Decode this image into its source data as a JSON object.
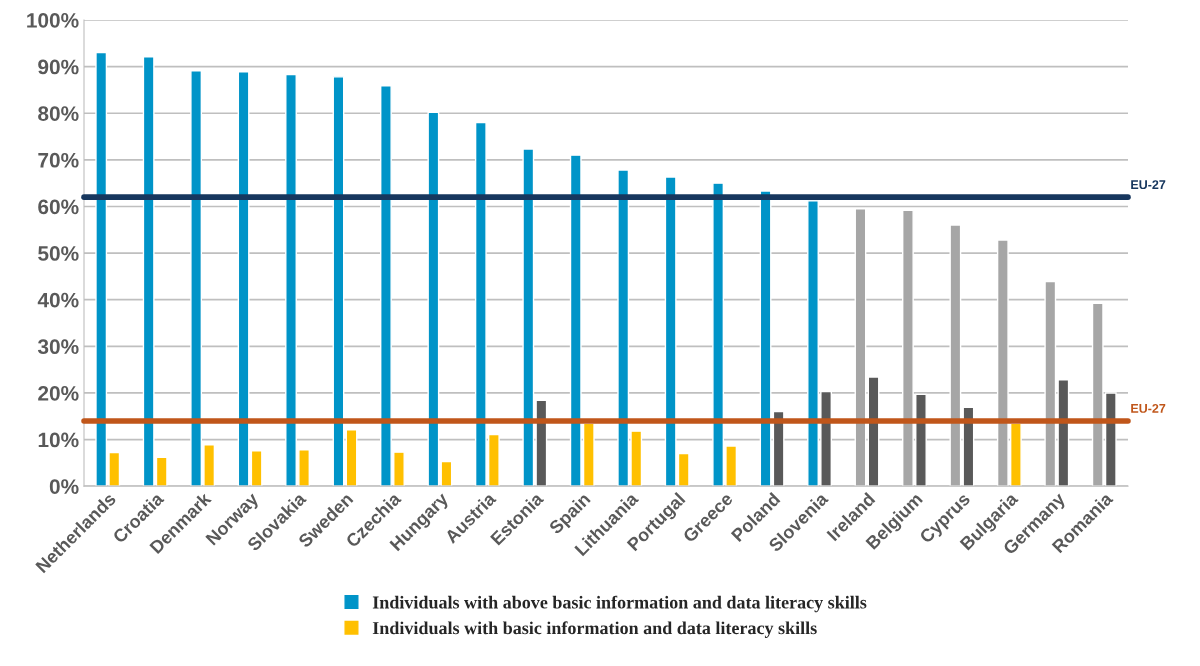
{
  "chart_data": {
    "type": "bar",
    "categories": [
      "Netherlands",
      "Croatia",
      "Denmark",
      "Norway",
      "Slovakia",
      "Sweden",
      "Czechia",
      "Hungary",
      "Austria",
      "Estonia",
      "Spain",
      "Lithuania",
      "Portugal",
      "Greece",
      "Poland",
      "Slovenia",
      "Ireland",
      "Belgium",
      "Cyprus",
      "Bulgaria",
      "Germany",
      "Romania"
    ],
    "series": [
      {
        "name": "Individuals with above basic information and data literacy skills",
        "color": "#0094c8",
        "colors": [
          "#0094c8",
          "#0094c8",
          "#0094c8",
          "#0094c8",
          "#0094c8",
          "#0094c8",
          "#0094c8",
          "#0094c8",
          "#0094c8",
          "#0094c8",
          "#0094c8",
          "#0094c8",
          "#0094c8",
          "#0094c8",
          "#0094c8",
          "#0094c8",
          "#a6a6a6",
          "#a6a6a6",
          "#a6a6a6",
          "#a6a6a6",
          "#a6a6a6",
          "#a6a6a6"
        ],
        "values": [
          93.0,
          92.1,
          89.1,
          88.9,
          88.3,
          87.8,
          85.9,
          80.2,
          78.0,
          72.3,
          71.0,
          67.8,
          66.3,
          65.0,
          63.3,
          61.2,
          59.5,
          59.2,
          56.0,
          52.8,
          43.9,
          39.2
        ]
      },
      {
        "name": "Individuals with basic information and data literacy skills",
        "color": "#ffc000",
        "colors": [
          "#ffc000",
          "#ffc000",
          "#ffc000",
          "#ffc000",
          "#ffc000",
          "#ffc000",
          "#ffc000",
          "#ffc000",
          "#ffc000",
          "#595959",
          "#ffc000",
          "#ffc000",
          "#ffc000",
          "#ffc000",
          "#595959",
          "#595959",
          "#595959",
          "#595959",
          "#595959",
          "#ffc000",
          "#595959",
          "#595959"
        ],
        "values": [
          7.2,
          6.2,
          8.9,
          7.6,
          7.8,
          12.1,
          7.3,
          5.3,
          11.1,
          18.4,
          13.5,
          11.8,
          7.0,
          8.6,
          16.0,
          20.3,
          23.4,
          19.7,
          16.9,
          13.5,
          22.8,
          20.0
        ]
      }
    ],
    "ylim": [
      0,
      100
    ],
    "yticks": [
      {
        "value": 0,
        "label": "0%"
      },
      {
        "value": 10,
        "label": "10%"
      },
      {
        "value": 20,
        "label": "20%"
      },
      {
        "value": 30,
        "label": "30%"
      },
      {
        "value": 40,
        "label": "40%"
      },
      {
        "value": 50,
        "label": "50%"
      },
      {
        "value": 60,
        "label": "60%"
      },
      {
        "value": 70,
        "label": "70%"
      },
      {
        "value": 80,
        "label": "80%"
      },
      {
        "value": 90,
        "label": "90%"
      },
      {
        "value": 100,
        "label": "100%"
      }
    ],
    "ref_lines": [
      {
        "axis": "y",
        "value": 62,
        "label": "EU-27",
        "color": "#17375e"
      },
      {
        "axis": "y",
        "value": 14,
        "label": "EU-27",
        "color": "#c0561a"
      }
    ],
    "grid": "y",
    "legend": "bottom"
  }
}
